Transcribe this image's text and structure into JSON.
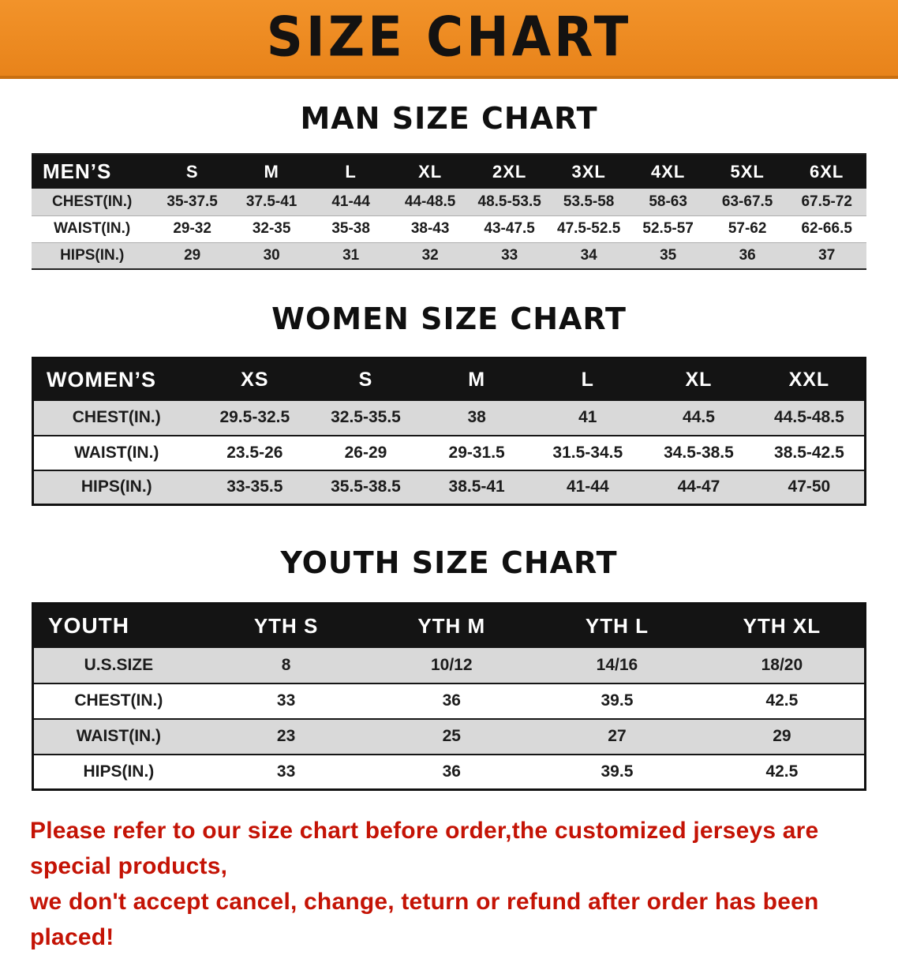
{
  "banner": {
    "title": "SIZE CHART",
    "bg_color": "#EE8A21",
    "title_color": "#141211"
  },
  "sections": [
    {
      "heading": "MAN SIZE CHART",
      "table": {
        "type": "table",
        "header": [
          "MEN’S",
          "S",
          "M",
          "L",
          "XL",
          "2XL",
          "3XL",
          "4XL",
          "5XL",
          "6XL"
        ],
        "rows": [
          [
            "CHEST(IN.)",
            "35-37.5",
            "37.5-41",
            "41-44",
            "44-48.5",
            "48.5-53.5",
            "53.5-58",
            "58-63",
            "63-67.5",
            "67.5-72"
          ],
          [
            "WAIST(IN.)",
            "29-32",
            "32-35",
            "35-38",
            "38-43",
            "43-47.5",
            "47.5-52.5",
            "52.5-57",
            "57-62",
            "62-66.5"
          ],
          [
            "HIPS(IN.)",
            "29",
            "30",
            "31",
            "32",
            "33",
            "34",
            "35",
            "36",
            "37"
          ]
        ]
      }
    },
    {
      "heading": "WOMEN SIZE CHART",
      "table": {
        "type": "table",
        "header": [
          "WOMEN’S",
          "XS",
          "S",
          "M",
          "L",
          "XL",
          "XXL"
        ],
        "rows": [
          [
            "CHEST(IN.)",
            "29.5-32.5",
            "32.5-35.5",
            "38",
            "41",
            "44.5",
            "44.5-48.5"
          ],
          [
            "WAIST(IN.)",
            "23.5-26",
            "26-29",
            "29-31.5",
            "31.5-34.5",
            "34.5-38.5",
            "38.5-42.5"
          ],
          [
            "HIPS(IN.)",
            "33-35.5",
            "35.5-38.5",
            "38.5-41",
            "41-44",
            "44-47",
            "47-50"
          ]
        ]
      }
    },
    {
      "heading": "YOUTH SIZE CHART",
      "table": {
        "type": "table",
        "header": [
          "YOUTH",
          "YTH S",
          "YTH M",
          "YTH L",
          "YTH XL"
        ],
        "rows": [
          [
            "U.S.SIZE",
            "8",
            "10/12",
            "14/16",
            "18/20"
          ],
          [
            "CHEST(IN.)",
            "33",
            "36",
            "39.5",
            "42.5"
          ],
          [
            "WAIST(IN.)",
            "23",
            "25",
            "27",
            "29"
          ],
          [
            "HIPS(IN.)",
            "33",
            "36",
            "39.5",
            "42.5"
          ]
        ]
      }
    }
  ],
  "disclaimer": {
    "line1": "Please refer to our size chart before order,the customized jerseys are special products,",
    "line2": "we don't accept cancel, change, teturn or refund after order has been placed!",
    "color": "#C41305"
  }
}
